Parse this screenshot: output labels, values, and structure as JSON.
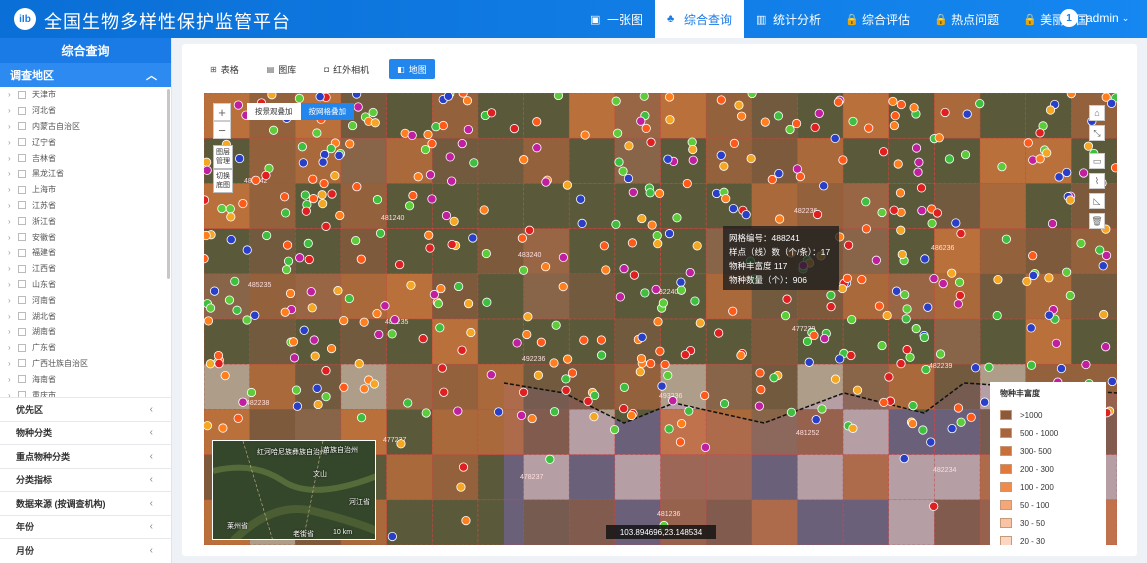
{
  "app": {
    "title": "全国生物多样性保护监管平台",
    "logo_text": "iIb"
  },
  "nav": [
    {
      "icon": "▣",
      "label": "一张图"
    },
    {
      "icon": "♣",
      "label": "综合查询",
      "active": true
    },
    {
      "icon": "▥",
      "label": "统计分析"
    },
    {
      "icon": "🔒",
      "label": "综合评估"
    },
    {
      "icon": "🔒",
      "label": "热点问题"
    },
    {
      "icon": "🔒",
      "label": "美丽中国"
    }
  ],
  "user": {
    "avatar": "1",
    "name": "admin"
  },
  "sidebar": {
    "title": "综合查询",
    "region": {
      "label": "调查地区"
    },
    "provinces": [
      "天津市",
      "河北省",
      "内蒙古自治区",
      "辽宁省",
      "吉林省",
      "黑龙江省",
      "上海市",
      "江苏省",
      "浙江省",
      "安徽省",
      "福建省",
      "江西省",
      "山东省",
      "河南省",
      "湖北省",
      "湖南省",
      "广东省",
      "广西壮族自治区",
      "海南省",
      "重庆市"
    ],
    "sections": [
      "优先区",
      "物种分类",
      "重点物种分类",
      "分类指标",
      "数据来源 (按调查机构)",
      "年份",
      "月份"
    ]
  },
  "tabs": [
    {
      "icon": "⊞",
      "label": "表格"
    },
    {
      "icon": "▤",
      "label": "图库"
    },
    {
      "icon": "◘",
      "label": "红外相机"
    },
    {
      "icon": "◧",
      "label": "地图",
      "active": true
    }
  ],
  "map": {
    "overlay_buttons": [
      "按景观叠加",
      "按网格叠加"
    ],
    "layer_manage": "图层管理",
    "switch_base": "切换底图",
    "tooltip": {
      "grid_id": "网格编号：488241",
      "samples": "样点（线）数（个/条）：17",
      "richness": "物种丰富度 117",
      "count": "物种数量（个）：906"
    },
    "coord": "103.894696,23.148534",
    "legend": {
      "title": "物种丰富度",
      "items": [
        {
          "label": ">1000",
          "color": "#8b5a3c"
        },
        {
          "label": "500 - 1000",
          "color": "#a9643d"
        },
        {
          "label": "300- 500",
          "color": "#c8703a"
        },
        {
          "label": "200 - 300",
          "color": "#e0793a"
        },
        {
          "label": "100 - 200",
          "color": "#f08a4a"
        },
        {
          "label": "50 - 100",
          "color": "#f5a777"
        },
        {
          "label": "30 - 50",
          "color": "#f9c4a4"
        },
        {
          "label": "20 - 30",
          "color": "#fbd6c0"
        }
      ]
    },
    "grid_labels": [
      "481242",
      "481240",
      "483240",
      "482240",
      "477239",
      "482239",
      "482238",
      "477237",
      "478237",
      "481236",
      "482236",
      "486236",
      "485235",
      "482235",
      "492236",
      "493236",
      "481252",
      "482234"
    ],
    "minimap_labels": [
      "红河哈尼族彝族自治州",
      "苗族自治州",
      "文山",
      "河江省",
      "莱州省",
      "老街省",
      "10 km"
    ],
    "right_tools": [
      "⌂",
      "⤡",
      "▭",
      "⌇",
      "◺",
      "🗑"
    ]
  }
}
